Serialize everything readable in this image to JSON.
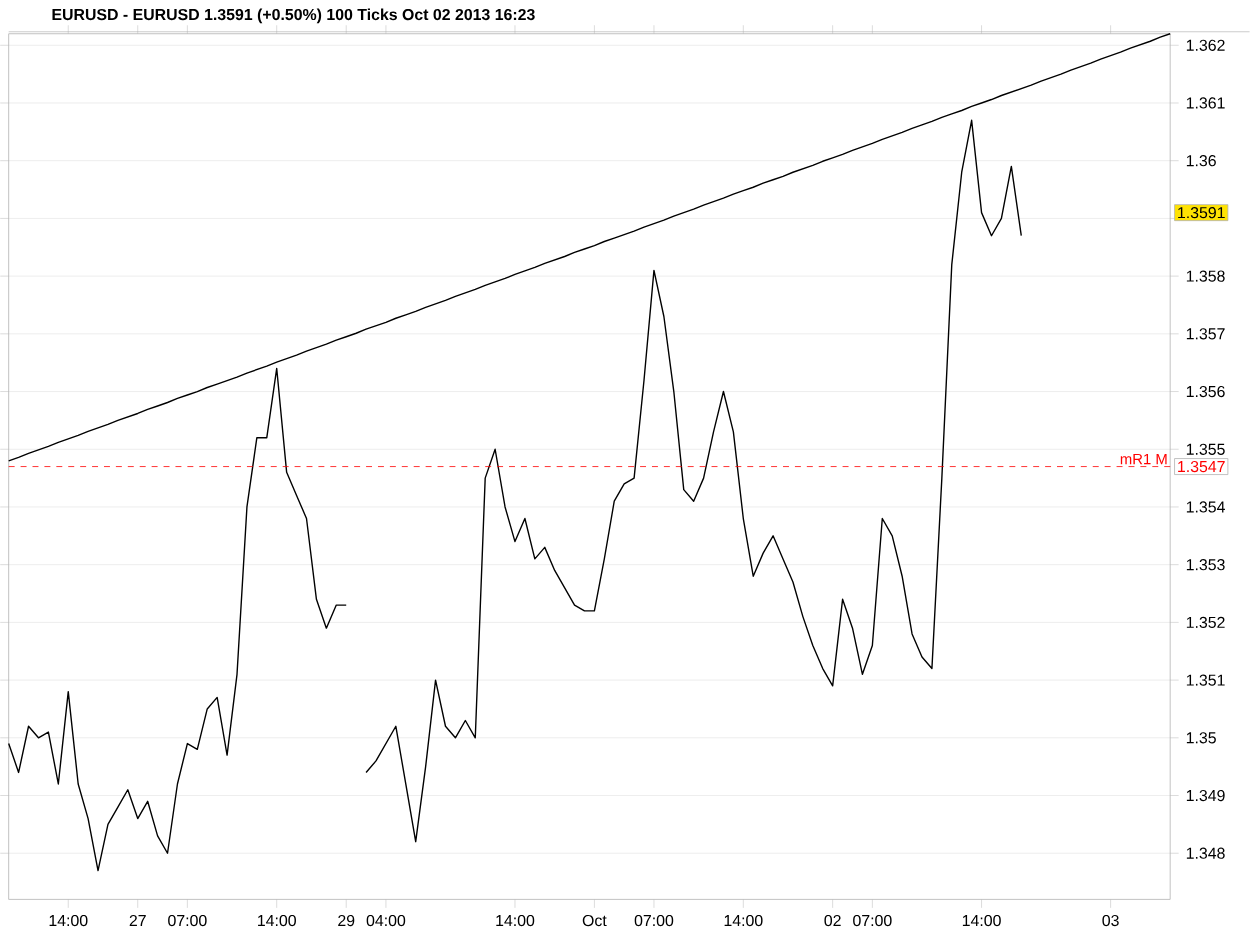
{
  "chart_data": {
    "type": "line",
    "title": "EURUSD - EURUSD    1.3591 (+0.50%)    100 Ticks   Oct 02 2013 16:23",
    "categories": [
      null,
      null,
      null,
      null,
      null,
      null,
      "14:00",
      null,
      null,
      null,
      null,
      null,
      null,
      "27",
      null,
      null,
      null,
      null,
      "07:00",
      null,
      null,
      null,
      null,
      null,
      null,
      null,
      null,
      "14:00",
      null,
      null,
      null,
      null,
      null,
      null,
      "29",
      null,
      null,
      null,
      "04:00",
      null,
      null,
      null,
      null,
      null,
      null,
      null,
      null,
      null,
      null,
      null,
      null,
      "14:00",
      null,
      null,
      null,
      null,
      null,
      null,
      null,
      "Oct",
      null,
      null,
      null,
      null,
      null,
      "07:00",
      null,
      null,
      null,
      null,
      null,
      null,
      null,
      null,
      "14:00",
      null,
      null,
      null,
      null,
      null,
      null,
      null,
      null,
      "02",
      null,
      null,
      null,
      "07:00",
      null,
      null,
      null,
      null,
      null,
      null,
      null,
      null,
      null,
      null,
      "14:00",
      null,
      null,
      null,
      null,
      null,
      null,
      null,
      null,
      null,
      null,
      null,
      null,
      "03",
      null,
      null,
      null,
      null,
      null,
      null
    ],
    "ylim": [
      1.3472,
      1.3622
    ],
    "yticks": [
      1.348,
      1.349,
      1.35,
      1.351,
      1.352,
      1.353,
      1.354,
      1.355,
      1.356,
      1.357,
      1.358,
      {
        "value": 1.359,
        "label": null
      },
      1.36,
      1.361,
      1.362
    ],
    "grid": "y",
    "series": [
      {
        "color": "#000000",
        "values": [
          1.3499,
          1.3494,
          1.3502,
          1.35,
          1.3501,
          1.3492,
          1.3508,
          1.3492,
          1.3486,
          1.3477,
          1.3485,
          1.3488,
          1.3491,
          1.3486,
          1.3489,
          1.3483,
          1.348,
          1.3492,
          1.3499,
          1.3498,
          1.3505,
          1.3507,
          1.3497,
          1.3511,
          1.354,
          1.3552,
          1.3552,
          1.3564,
          1.3546,
          1.3542,
          1.3538,
          1.3524,
          1.3519,
          1.3523,
          1.3523,
          null,
          1.3494,
          1.3496,
          1.3499,
          1.3502,
          1.3492,
          1.3482,
          1.3495,
          1.351,
          1.3502,
          1.35,
          1.3503,
          1.35,
          1.3545,
          1.355,
          1.354,
          1.3534,
          1.3538,
          1.3531,
          1.3533,
          1.3529,
          1.3526,
          1.3523,
          1.3522,
          1.3522,
          1.3531,
          1.3541,
          1.3544,
          1.3545,
          1.3562,
          1.3581,
          1.3573,
          1.356,
          1.3543,
          1.3541,
          1.3545,
          1.3553,
          1.356,
          1.3553,
          1.3538,
          1.3528,
          1.3532,
          1.3535,
          1.3531,
          1.3527,
          1.3521,
          1.3516,
          1.3512,
          1.3509,
          1.3524,
          1.3519,
          1.3511,
          1.3516,
          1.3538,
          1.3535,
          1.3528,
          1.3518,
          1.3514,
          1.3512,
          1.3545,
          1.3582,
          1.3598,
          1.3607,
          1.3591,
          1.3587,
          1.359,
          1.3599,
          1.3587,
          null,
          null,
          null,
          null,
          null,
          null,
          null,
          null,
          null,
          null,
          null,
          null,
          null,
          null,
          null
        ]
      },
      {
        "color": "#000000",
        "values": [
          1.3548,
          1.35486,
          1.35493,
          1.35499,
          1.35505,
          1.35512,
          1.35518,
          1.35524,
          1.35531,
          1.35537,
          1.35543,
          1.3555,
          1.35556,
          1.35562,
          1.35569,
          1.35575,
          1.35581,
          1.35588,
          1.35594,
          1.356,
          1.35607,
          1.35613,
          1.35619,
          1.35625,
          1.35632,
          1.35638,
          1.35644,
          1.35651,
          1.35657,
          1.35663,
          1.3567,
          1.35676,
          1.35682,
          1.35689,
          1.35695,
          1.35701,
          1.35708,
          1.35714,
          1.3572,
          1.35727,
          1.35733,
          1.35739,
          1.35746,
          1.35752,
          1.35758,
          1.35765,
          1.35771,
          1.35777,
          1.35784,
          1.3579,
          1.35796,
          1.35803,
          1.35809,
          1.35815,
          1.35822,
          1.35828,
          1.35834,
          1.35841,
          1.35847,
          1.35853,
          1.3586,
          1.35866,
          1.35872,
          1.35878,
          1.35885,
          1.35891,
          1.35897,
          1.35904,
          1.3591,
          1.35916,
          1.35923,
          1.35929,
          1.35935,
          1.35942,
          1.35948,
          1.35954,
          1.35961,
          1.35967,
          1.35973,
          1.3598,
          1.35986,
          1.35992,
          1.35999,
          1.36005,
          1.36011,
          1.36018,
          1.36024,
          1.3603,
          1.36037,
          1.36043,
          1.36049,
          1.36056,
          1.36062,
          1.36068,
          1.36075,
          1.36081,
          1.36087,
          1.36094,
          1.361,
          1.36106,
          1.36113,
          1.36119,
          1.36125,
          1.36131,
          1.36138,
          1.36144,
          1.3615,
          1.36157,
          1.36163,
          1.36169,
          1.36176,
          1.36182,
          1.36188,
          1.36195,
          1.36201,
          1.36207,
          1.36214,
          1.3622
        ]
      }
    ],
    "ref_lines": [
      {
        "axis": "y",
        "value": 1.3547,
        "label": "mR1 M",
        "color": "#ff0000",
        "line_style": "dashed"
      }
    ],
    "annotations": [
      {
        "text": "1.3591",
        "y": 1.3591
      },
      {
        "text": "1.3547",
        "y": 1.3547
      }
    ]
  }
}
